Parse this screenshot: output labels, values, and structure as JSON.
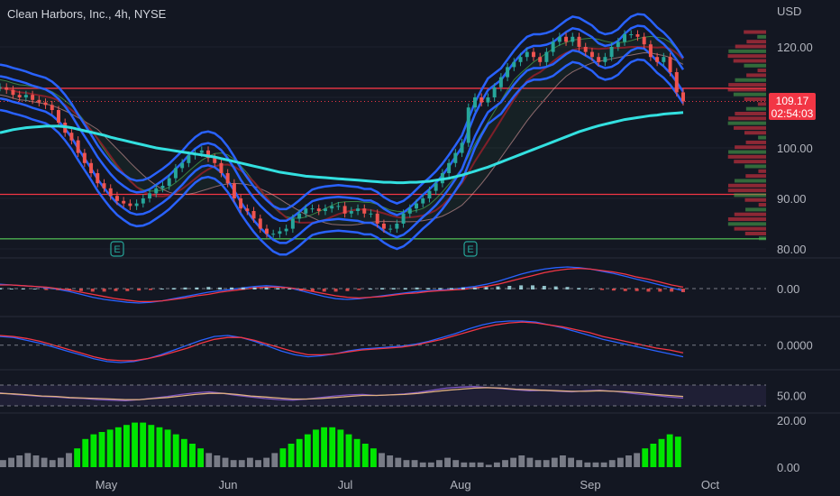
{
  "header": {
    "title": "Clean Harbors, Inc., 4h, NYSE",
    "currency": "USD"
  },
  "price_tag": {
    "value": "109.17",
    "countdown": "02:54:03",
    "color": "#f23645"
  },
  "earnings_marker": "E",
  "colors": {
    "background": "#131722",
    "up": "#26a69a",
    "down": "#ef5350",
    "band_blue": "#2962ff",
    "ma_cyan": "#33e0e0",
    "level_red": "#f23645",
    "level_green": "#4caf50",
    "volume_up": "#00e600",
    "volume_neutral": "#787b86"
  },
  "chart_data": [
    {
      "type": "line",
      "panel": "price",
      "ylabel": "USD",
      "ylim": [
        80,
        125
      ],
      "y_ticks": [
        "80.00",
        "90.00",
        "100.00",
        "110.00",
        "120.00"
      ],
      "x_ticks": [
        "May",
        "Jun",
        "Jul",
        "Aug",
        "Sep",
        "Oct"
      ],
      "series": [
        {
          "role": "close",
          "values": [
            112,
            111.5,
            110.5,
            110,
            110.5,
            109.5,
            109,
            108.5,
            107.5,
            105,
            103,
            101.5,
            99,
            97,
            95,
            93,
            92,
            90.5,
            89.5,
            89,
            88.5,
            89,
            90,
            91,
            92,
            92.5,
            94,
            96,
            97,
            98.5,
            99,
            99.5,
            98,
            97,
            95,
            93,
            90,
            88,
            87.5,
            86,
            84,
            83,
            83,
            83.5,
            84,
            86,
            87,
            88,
            88,
            87.5,
            88,
            88.5,
            88.5,
            87,
            87.5,
            88,
            87,
            87,
            85,
            84,
            84,
            85,
            87,
            88,
            89,
            90,
            91.5,
            93,
            95,
            97,
            99,
            101,
            108,
            110,
            109,
            110,
            112,
            114,
            116,
            117,
            118,
            119,
            118,
            117,
            119,
            121,
            122,
            121,
            122,
            120,
            119,
            118,
            117,
            118,
            120,
            121,
            122.5,
            122.5,
            122,
            120.5,
            118,
            117,
            118,
            115,
            111,
            109.2
          ]
        },
        {
          "role": "moving-average",
          "values": [
            103,
            103.3,
            103.6,
            103.8,
            104,
            104.1,
            104.2,
            104.3,
            104.3,
            104.3,
            104.2,
            104,
            103.7,
            103.4,
            103.1,
            102.8,
            102.5,
            102.1,
            101.8,
            101.5,
            101.2,
            100.9,
            100.6,
            100.3,
            100,
            99.8,
            99.6,
            99.4,
            99.2,
            99,
            98.8,
            98.6,
            98.4,
            98.2,
            97.9,
            97.6,
            97.3,
            97,
            96.7,
            96.4,
            96.1,
            95.8,
            95.5,
            95.2,
            95,
            94.8,
            94.6,
            94.4,
            94.3,
            94.2,
            94.1,
            94,
            93.9,
            93.8,
            93.7,
            93.6,
            93.5,
            93.4,
            93.3,
            93.2,
            93.2,
            93.1,
            93.1,
            93.2,
            93.2,
            93.3,
            93.4,
            93.6,
            93.8,
            94,
            94.3,
            94.6,
            95,
            95.4,
            95.8,
            96.2,
            96.7,
            97.2,
            97.7,
            98.2,
            98.7,
            99.2,
            99.7,
            100.2,
            100.7,
            101.2,
            101.7,
            102.2,
            102.7,
            103.2,
            103.6,
            104,
            104.4,
            104.7,
            105,
            105.3,
            105.6,
            105.8,
            106,
            106.2,
            106.4,
            106.5,
            106.7,
            106.8,
            106.9,
            107
          ]
        }
      ],
      "levels": [
        {
          "value": 111.8,
          "color": "#f23645"
        },
        {
          "value": 90.8,
          "color": "#f23645"
        },
        {
          "value": 82.0,
          "color": "#4caf50"
        }
      ]
    },
    {
      "type": "line",
      "panel": "oscillator-1",
      "y_ticks": [
        "0.00"
      ],
      "series": [
        {
          "role": "macd",
          "values": [
            0.6,
            0.5,
            0.4,
            0.3,
            0.1,
            -0.1,
            -0.4,
            -0.8,
            -1.2,
            -1.5,
            -1.7,
            -1.9,
            -2.0,
            -1.9,
            -1.7,
            -1.4,
            -1.1,
            -0.8,
            -0.5,
            -0.3,
            -0.1,
            0.1,
            0.3,
            0.4,
            0.3,
            0.1,
            -0.3,
            -0.7,
            -1.1,
            -1.4,
            -1.5,
            -1.4,
            -1.2,
            -1.0,
            -0.8,
            -0.6,
            -0.4,
            -0.3,
            -0.2,
            -0.1,
            0.1,
            0.3,
            0.6,
            1.0,
            1.5,
            2.0,
            2.4,
            2.7,
            2.9,
            3.0,
            2.9,
            2.7,
            2.4,
            2.1,
            1.7,
            1.3,
            0.9,
            0.5,
            0.1,
            -0.3
          ]
        },
        {
          "role": "signal",
          "values": [
            0.5,
            0.5,
            0.4,
            0.3,
            0.2,
            0.0,
            -0.2,
            -0.5,
            -0.8,
            -1.1,
            -1.4,
            -1.6,
            -1.8,
            -1.8,
            -1.7,
            -1.5,
            -1.3,
            -1.0,
            -0.8,
            -0.5,
            -0.3,
            -0.1,
            0.1,
            0.2,
            0.2,
            0.1,
            -0.1,
            -0.4,
            -0.7,
            -1.0,
            -1.2,
            -1.3,
            -1.2,
            -1.1,
            -0.9,
            -0.7,
            -0.6,
            -0.4,
            -0.3,
            -0.2,
            -0.1,
            0.1,
            0.3,
            0.6,
            1.0,
            1.4,
            1.8,
            2.2,
            2.5,
            2.7,
            2.8,
            2.7,
            2.5,
            2.3,
            2.0,
            1.6,
            1.3,
            0.9,
            0.5,
            0.2
          ]
        }
      ]
    },
    {
      "type": "line",
      "panel": "oscillator-2",
      "y_ticks": [
        "0.0000"
      ],
      "series": [
        {
          "role": "fast",
          "values": [
            0.9,
            0.8,
            0.5,
            0.2,
            -0.2,
            -0.6,
            -1.0,
            -1.4,
            -1.7,
            -1.8,
            -1.7,
            -1.4,
            -1.0,
            -0.5,
            0.0,
            0.5,
            0.9,
            1.0,
            0.8,
            0.4,
            -0.1,
            -0.6,
            -1.0,
            -1.2,
            -1.1,
            -0.9,
            -0.6,
            -0.4,
            -0.3,
            -0.2,
            -0.1,
            0.1,
            0.4,
            0.8,
            1.2,
            1.7,
            2.1,
            2.4,
            2.5,
            2.5,
            2.4,
            2.1,
            1.8,
            1.4,
            1.0,
            0.6,
            0.3,
            0.0,
            -0.3,
            -0.6,
            -0.9,
            -1.2
          ]
        },
        {
          "role": "slow",
          "values": [
            1.0,
            0.9,
            0.7,
            0.4,
            0.0,
            -0.4,
            -0.8,
            -1.2,
            -1.5,
            -1.6,
            -1.6,
            -1.4,
            -1.1,
            -0.7,
            -0.3,
            0.2,
            0.6,
            0.8,
            0.8,
            0.5,
            0.1,
            -0.3,
            -0.7,
            -1.0,
            -1.0,
            -0.9,
            -0.7,
            -0.5,
            -0.4,
            -0.3,
            -0.2,
            0.0,
            0.3,
            0.6,
            1.0,
            1.4,
            1.8,
            2.1,
            2.3,
            2.4,
            2.3,
            2.1,
            1.9,
            1.6,
            1.3,
            0.9,
            0.6,
            0.3,
            0.0,
            -0.3,
            -0.5,
            -0.8
          ]
        }
      ]
    },
    {
      "type": "line",
      "panel": "oscillator-3",
      "y_ticks": [
        "50.00"
      ],
      "series": [
        {
          "role": "rsi",
          "values": [
            55,
            52,
            50,
            48,
            47,
            45,
            44,
            42,
            41,
            40,
            42,
            45,
            48,
            52,
            55,
            57,
            54,
            50,
            47,
            44,
            42,
            41,
            43,
            46,
            49,
            51,
            52,
            50,
            51,
            53,
            56,
            60,
            64,
            66,
            67,
            65,
            63,
            61,
            59,
            60,
            58,
            57,
            59,
            60,
            58,
            55,
            52,
            50,
            47,
            45
          ]
        },
        {
          "role": "rsi-ma",
          "values": [
            54,
            53,
            51,
            49,
            48,
            46,
            45,
            44,
            43,
            42,
            42,
            44,
            46,
            49,
            52,
            54,
            54,
            52,
            49,
            47,
            45,
            43,
            43,
            44,
            46,
            48,
            50,
            50,
            51,
            52,
            54,
            57,
            60,
            62,
            64,
            65,
            64,
            62,
            61,
            60,
            59,
            58,
            58,
            59,
            58,
            57,
            55,
            52,
            50,
            48
          ]
        }
      ]
    },
    {
      "type": "bar",
      "panel": "volume-oscillator",
      "y_ticks": [
        "0.00",
        "20.00"
      ],
      "values": [
        3,
        4,
        5,
        6,
        5,
        4,
        3,
        4,
        6,
        8,
        12,
        14,
        15,
        16,
        17,
        18,
        19,
        19,
        18,
        17,
        16,
        14,
        12,
        10,
        8,
        6,
        5,
        4,
        3,
        3,
        4,
        3,
        4,
        6,
        8,
        10,
        12,
        14,
        16,
        17,
        17,
        16,
        14,
        12,
        10,
        8,
        6,
        5,
        4,
        3,
        3,
        2,
        2,
        3,
        4,
        3,
        2,
        2,
        2,
        1,
        2,
        3,
        4,
        5,
        4,
        3,
        3,
        4,
        5,
        4,
        3,
        2,
        2,
        2,
        3,
        4,
        5,
        6,
        8,
        10,
        12,
        14,
        13
      ]
    }
  ]
}
